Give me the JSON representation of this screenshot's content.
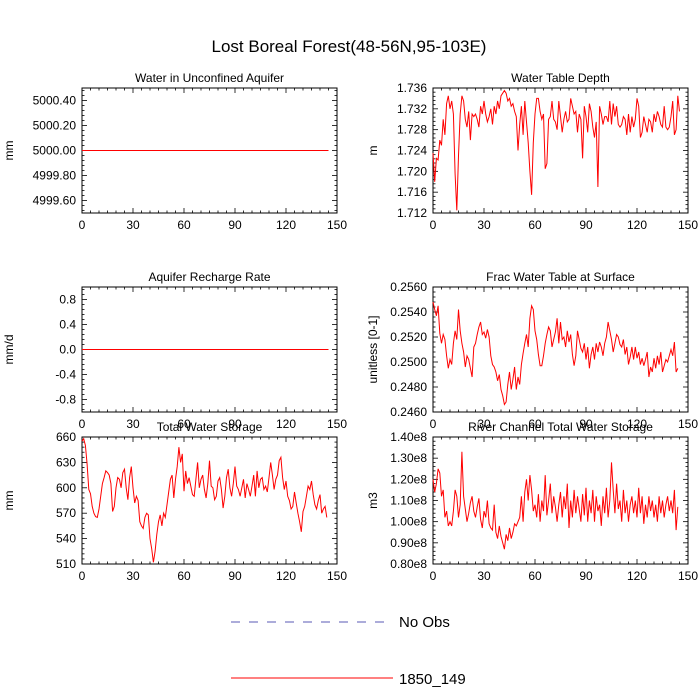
{
  "figure": {
    "title": "Lost Boreal Forest(48-56N,95-103E)",
    "legend": [
      {
        "label": "No Obs",
        "color": "#5a5ab4",
        "style": "dashed"
      },
      {
        "label": "1850_149",
        "color": "#ff0000",
        "style": "solid"
      }
    ],
    "legend_position": "bottom-center"
  },
  "chart_data": [
    {
      "type": "line",
      "title": "Water in Unconfined Aquifer",
      "ylabel": "mm",
      "xlim": [
        0,
        150
      ],
      "ylim": [
        4999.5,
        5000.5
      ],
      "xticks": [
        0,
        30,
        60,
        90,
        120,
        150
      ],
      "yticks": [
        4999.6,
        4999.8,
        5000.0,
        5000.2,
        5000.4
      ],
      "ytick_labels": [
        "4999.60",
        "4999.80",
        "5000.00",
        "5000.20",
        "5000.40"
      ],
      "series": [
        {
          "name": "1850_149",
          "x": [
            0,
            145
          ],
          "values": [
            5000.0,
            5000.0
          ]
        }
      ]
    },
    {
      "type": "line",
      "title": "Water Table Depth",
      "ylabel": "m",
      "xlim": [
        0,
        150
      ],
      "ylim": [
        1.712,
        1.736
      ],
      "xticks": [
        0,
        30,
        60,
        90,
        120,
        150
      ],
      "yticks": [
        1.712,
        1.716,
        1.72,
        1.724,
        1.728,
        1.732,
        1.736
      ],
      "ytick_labels": [
        "1.712",
        "1.716",
        "1.720",
        "1.724",
        "1.728",
        "1.732",
        "1.736"
      ],
      "series": [
        {
          "name": "1850_149",
          "x_start": 0,
          "x_step": 1,
          "values": [
            1.7235,
            1.718,
            1.7225,
            1.7222,
            1.726,
            1.725,
            1.73,
            1.727,
            1.733,
            1.7345,
            1.732,
            1.7335,
            1.731,
            1.7195,
            1.7125,
            1.723,
            1.731,
            1.7345,
            1.7335,
            1.73,
            1.7285,
            1.7315,
            1.726,
            1.731,
            1.7305,
            1.731,
            1.73,
            1.7285,
            1.7325,
            1.731,
            1.7335,
            1.731,
            1.7295,
            1.7305,
            1.732,
            1.729,
            1.7325,
            1.731,
            1.7335,
            1.732,
            1.7345,
            1.735,
            1.7355,
            1.735,
            1.7335,
            1.734,
            1.7325,
            1.733,
            1.7315,
            1.7305,
            1.724,
            1.729,
            1.7325,
            1.727,
            1.7335,
            1.7295,
            1.7255,
            1.72,
            1.7155,
            1.7255,
            1.731,
            1.734,
            1.734,
            1.7315,
            1.73,
            1.731,
            1.7205,
            1.7215,
            1.73,
            1.7305,
            1.7335,
            1.73,
            1.7295,
            1.728,
            1.7335,
            1.7305,
            1.7275,
            1.73,
            1.7315,
            1.7295,
            1.73,
            1.734,
            1.7325,
            1.731,
            1.7315,
            1.7275,
            1.731,
            1.73,
            1.7225,
            1.7325,
            1.7305,
            1.7275,
            1.733,
            1.7315,
            1.7285,
            1.7265,
            1.7295,
            1.717,
            1.7325,
            1.731,
            1.729,
            1.7305,
            1.7305,
            1.7295,
            1.7335,
            1.729,
            1.733,
            1.7305,
            1.7325,
            1.729,
            1.7285,
            1.729,
            1.7305,
            1.73,
            1.727,
            1.731,
            1.7275,
            1.7305,
            1.7285,
            1.73,
            1.734,
            1.7325,
            1.7265,
            1.7275,
            1.7305,
            1.729,
            1.7275,
            1.73,
            1.7295,
            1.7275,
            1.731,
            1.7295,
            1.7315,
            1.7305,
            1.729,
            1.7285,
            1.7325,
            1.7285,
            1.728,
            1.7285,
            1.7305,
            1.7335,
            1.727,
            1.728,
            1.7345,
            1.7315
          ]
        }
      ]
    },
    {
      "type": "line",
      "title": "Aquifer Recharge Rate",
      "ylabel": "mm/d",
      "xlim": [
        0,
        150
      ],
      "ylim": [
        -1.0,
        1.0
      ],
      "xticks": [
        0,
        30,
        60,
        90,
        120,
        150
      ],
      "yticks": [
        -0.8,
        -0.4,
        0.0,
        0.4,
        0.8
      ],
      "ytick_labels": [
        "-0.8",
        "-0.4",
        "0.0",
        "0.4",
        "0.8"
      ],
      "series": [
        {
          "name": "1850_149",
          "x": [
            0,
            145
          ],
          "values": [
            0.0,
            0.0
          ]
        }
      ]
    },
    {
      "type": "line",
      "title": "Frac Water Table at Surface",
      "ylabel": "unitless [0-1]",
      "xlim": [
        0,
        150
      ],
      "ylim": [
        0.246,
        0.256
      ],
      "xticks": [
        0,
        30,
        60,
        90,
        120,
        150
      ],
      "yticks": [
        0.246,
        0.248,
        0.25,
        0.252,
        0.254,
        0.256
      ],
      "ytick_labels": [
        "0.2460",
        "0.2480",
        "0.2500",
        "0.2520",
        "0.2540",
        "0.2560"
      ],
      "series": [
        {
          "name": "1850_149",
          "x_start": 0,
          "x_step": 1,
          "values": [
            0.2548,
            0.2542,
            0.2537,
            0.2545,
            0.2523,
            0.2515,
            0.2522,
            0.2518,
            0.2505,
            0.2495,
            0.2502,
            0.2498,
            0.2515,
            0.2525,
            0.2518,
            0.2542,
            0.2525,
            0.2515,
            0.2508,
            0.2496,
            0.2505,
            0.2502,
            0.2495,
            0.2488,
            0.2512,
            0.2515,
            0.2522,
            0.2528,
            0.2532,
            0.2522,
            0.2524,
            0.2519,
            0.2526,
            0.252,
            0.2505,
            0.2498,
            0.2496,
            0.2492,
            0.2485,
            0.249,
            0.2478,
            0.2473,
            0.2466,
            0.2468,
            0.2482,
            0.2492,
            0.2478,
            0.2486,
            0.2496,
            0.2478,
            0.2488,
            0.2482,
            0.2498,
            0.2507,
            0.2515,
            0.2522,
            0.2512,
            0.2535,
            0.2545,
            0.2542,
            0.2525,
            0.2518,
            0.2506,
            0.2497,
            0.2497,
            0.2505,
            0.2515,
            0.2522,
            0.2528,
            0.2525,
            0.2512,
            0.2518,
            0.2524,
            0.2535,
            0.2515,
            0.2532,
            0.2518,
            0.252,
            0.2512,
            0.2525,
            0.2516,
            0.2522,
            0.2506,
            0.2497,
            0.2505,
            0.2525,
            0.2518,
            0.2511,
            0.2508,
            0.2515,
            0.2502,
            0.2512,
            0.2495,
            0.2506,
            0.2512,
            0.2502,
            0.2515,
            0.2508,
            0.2516,
            0.2512,
            0.2505,
            0.2515,
            0.252,
            0.2532,
            0.2525,
            0.2518,
            0.2508,
            0.2515,
            0.2522,
            0.252,
            0.2514,
            0.2512,
            0.2518,
            0.2506,
            0.2512,
            0.2498,
            0.2504,
            0.2512,
            0.2502,
            0.2512,
            0.2503,
            0.2508,
            0.2498,
            0.2503,
            0.2497,
            0.2502,
            0.2508,
            0.2488,
            0.2496,
            0.2492,
            0.2503,
            0.2495,
            0.2505,
            0.2498,
            0.2508,
            0.2492,
            0.2497,
            0.2502,
            0.25,
            0.2505,
            0.251,
            0.2505,
            0.2516,
            0.2492,
            0.2495
          ]
        }
      ]
    },
    {
      "type": "line",
      "title": "Total Water Storage",
      "ylabel": "mm",
      "xlim": [
        0,
        150
      ],
      "ylim": [
        510,
        660
      ],
      "xticks": [
        0,
        30,
        60,
        90,
        120,
        150
      ],
      "yticks": [
        510,
        540,
        570,
        600,
        630,
        660
      ],
      "ytick_labels": [
        "510",
        "540",
        "570",
        "600",
        "630",
        "660"
      ],
      "series": [
        {
          "name": "1850_149",
          "x_start": 0,
          "x_step": 1,
          "values": [
            655,
            658,
            650,
            628,
            598,
            593,
            578,
            570,
            566,
            565,
            575,
            590,
            605,
            612,
            620,
            618,
            615,
            605,
            572,
            578,
            600,
            612,
            610,
            600,
            618,
            622,
            600,
            586,
            612,
            625,
            600,
            582,
            590,
            585,
            560,
            555,
            552,
            565,
            570,
            568,
            540,
            528,
            512,
            525,
            545,
            560,
            568,
            555,
            570,
            565,
            580,
            595,
            610,
            615,
            588,
            610,
            625,
            648,
            630,
            640,
            596,
            620,
            605,
            612,
            602,
            592,
            590,
            610,
            630,
            600,
            610,
            615,
            598,
            588,
            605,
            632,
            602,
            600,
            586,
            590,
            608,
            612,
            598,
            576,
            590,
            612,
            622,
            600,
            590,
            605,
            625,
            602,
            598,
            590,
            600,
            610,
            588,
            605,
            598,
            590,
            602,
            615,
            590,
            620,
            600,
            610,
            612,
            598,
            602,
            595,
            612,
            630,
            615,
            598,
            610,
            615,
            632,
            636,
            612,
            598,
            608,
            590,
            585,
            575,
            578,
            595,
            582,
            570,
            560,
            548,
            572,
            578,
            590,
            602,
            598,
            608,
            592,
            580,
            575,
            585,
            592,
            570,
            575,
            578,
            565
          ]
        }
      ]
    },
    {
      "type": "line",
      "title": "River Channel Total Water Storage",
      "ylabel": "m3",
      "xlim": [
        0,
        150
      ],
      "ylim": [
        80000000.0,
        140000000.0
      ],
      "xticks": [
        0,
        30,
        60,
        90,
        120,
        150
      ],
      "yticks": [
        80000000.0,
        90000000.0,
        100000000.0,
        110000000.0,
        120000000.0,
        130000000.0,
        140000000.0
      ],
      "ytick_labels": [
        "0.80e8",
        "0.90e8",
        "1.00e8",
        "1.10e8",
        "1.20e8",
        "1.30e8",
        "1.40e8"
      ],
      "series": [
        {
          "name": "1850_149",
          "x_start": 0,
          "x_step": 1,
          "values": [
            120000000.0,
            114000000.0,
            118000000.0,
            125000000.0,
            123000000.0,
            112000000.0,
            115000000.0,
            102000000.0,
            105000000.0,
            98000000.0,
            100000000.0,
            98000000.0,
            105000000.0,
            115000000.0,
            112000000.0,
            102000000.0,
            108000000.0,
            133000000.0,
            112000000.0,
            106000000.0,
            100000000.0,
            104000000.0,
            109000000.0,
            112000000.0,
            105000000.0,
            102000000.0,
            107000000.0,
            111000000.0,
            101000000.0,
            97000000.0,
            105000000.0,
            102000000.0,
            110000000.0,
            99000000.0,
            97000000.0,
            96000000.0,
            108000000.0,
            95000000.0,
            92000000.0,
            98000000.0,
            93000000.0,
            90000000.0,
            87000000.0,
            94000000.0,
            91000000.0,
            97000000.0,
            92000000.0,
            95000000.0,
            99000000.0,
            98000000.0,
            100000000.0,
            102000000.0,
            112000000.0,
            100000000.0,
            114000000.0,
            120000000.0,
            110000000.0,
            122000000.0,
            115000000.0,
            105000000.0,
            108000000.0,
            102000000.0,
            113000000.0,
            100000000.0,
            110000000.0,
            105000000.0,
            122000000.0,
            103000000.0,
            110000000.0,
            118000000.0,
            104000000.0,
            112000000.0,
            107000000.0,
            100000000.0,
            108000000.0,
            114000000.0,
            102000000.0,
            112000000.0,
            106000000.0,
            118000000.0,
            97000000.0,
            110000000.0,
            102000000.0,
            115000000.0,
            104000000.0,
            112000000.0,
            106000000.0,
            100000000.0,
            113000000.0,
            103000000.0,
            116000000.0,
            100000000.0,
            110000000.0,
            104000000.0,
            115000000.0,
            100000000.0,
            112000000.0,
            105000000.0,
            108000000.0,
            98000000.0,
            112000000.0,
            104000000.0,
            116000000.0,
            102000000.0,
            110000000.0,
            128000000.0,
            115000000.0,
            104000000.0,
            118000000.0,
            106000000.0,
            110000000.0,
            100000000.0,
            115000000.0,
            104000000.0,
            110000000.0,
            100000000.0,
            108000000.0,
            112000000.0,
            104000000.0,
            110000000.0,
            102000000.0,
            116000000.0,
            104000000.0,
            112000000.0,
            99000000.0,
            108000000.0,
            102000000.0,
            112000000.0,
            105000000.0,
            110000000.0,
            102000000.0,
            108000000.0,
            100000000.0,
            112000000.0,
            104000000.0,
            110000000.0,
            102000000.0,
            108000000.0,
            112000000.0,
            105000000.0,
            110000000.0,
            104000000.0,
            115000000.0,
            96000000.0,
            107000000.0
          ]
        }
      ]
    }
  ]
}
